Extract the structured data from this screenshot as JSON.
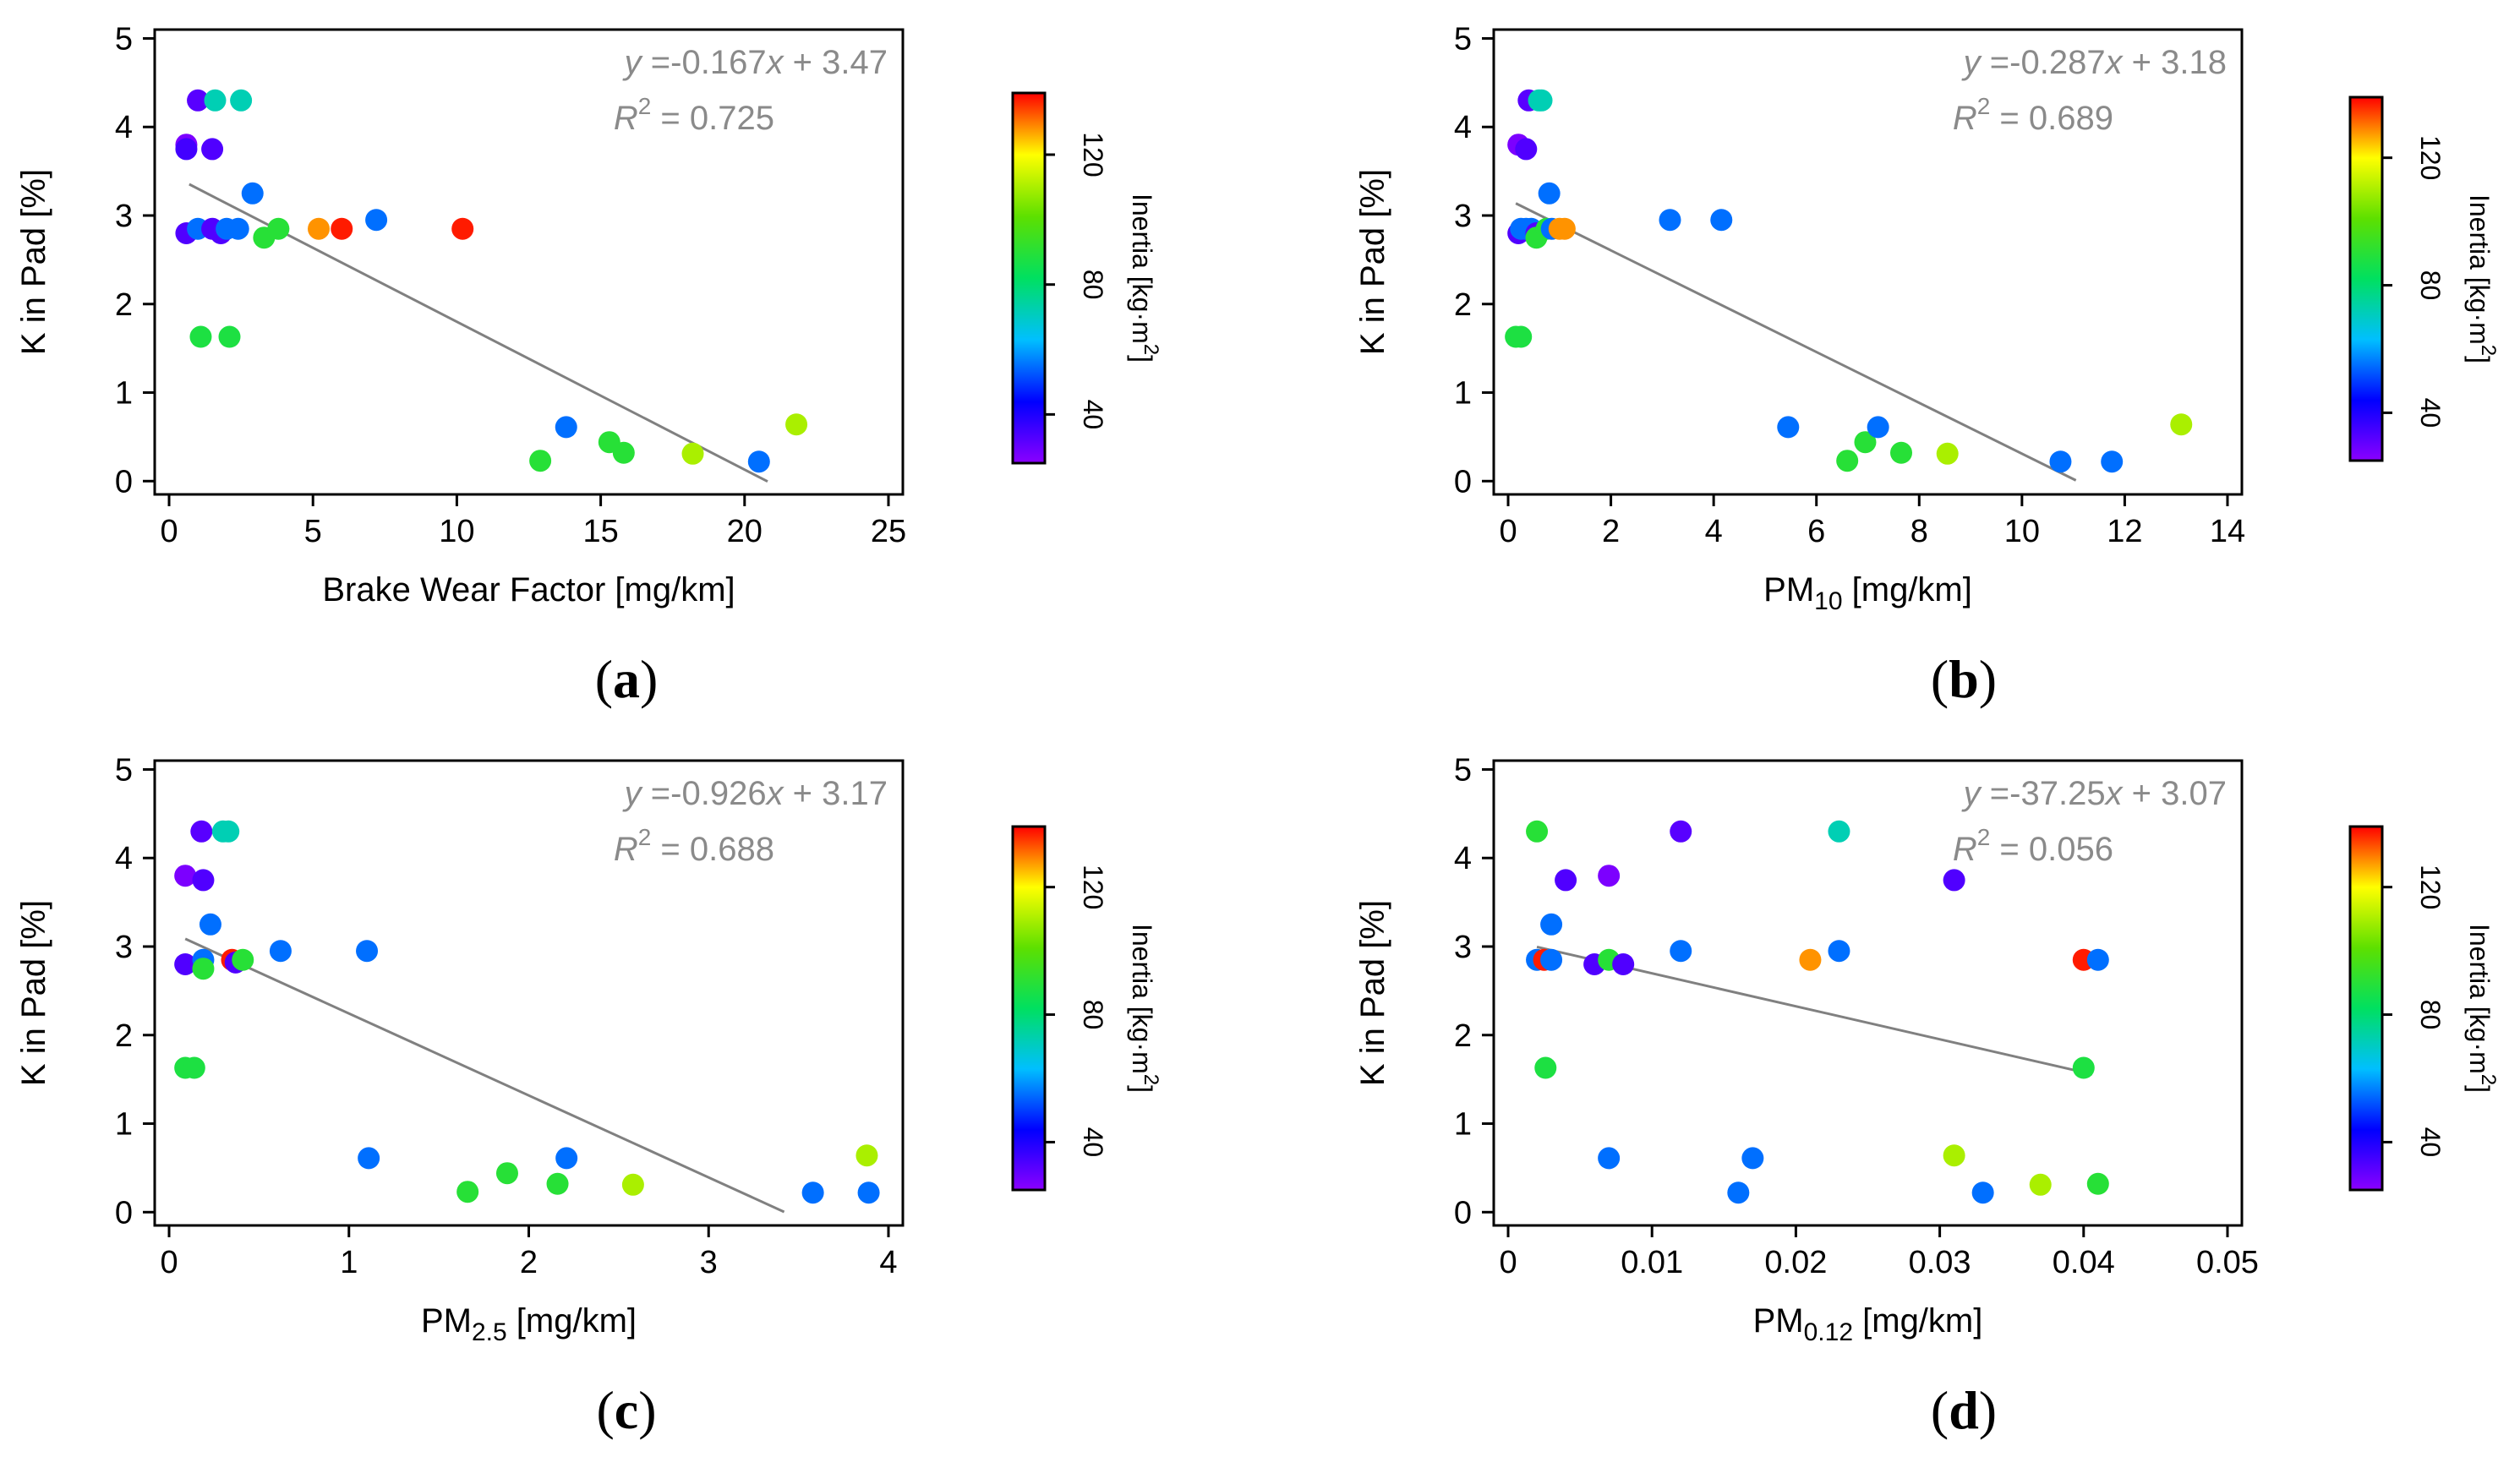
{
  "chart_data": [
    {
      "id": "a",
      "type": "scatter",
      "panel_label": "a",
      "xlabel": "Brake Wear Factor [mg/km]",
      "xlabel_main": "Brake Wear Factor [mg/km]",
      "xlabel_sub": "",
      "xlabel_after": "",
      "ylabel": "K in Pad [%]",
      "xlim": [
        0,
        25
      ],
      "ylim": [
        0,
        5
      ],
      "xticks": [
        0,
        5,
        10,
        15,
        20,
        25
      ],
      "xtick_labels": [
        "0",
        "5",
        "10",
        "15",
        "20",
        "25"
      ],
      "yticks": [
        0,
        1,
        2,
        3,
        4,
        5
      ],
      "ytick_labels": [
        "0",
        "1",
        "2",
        "3",
        "4",
        "5"
      ],
      "equation": {
        "y": "y",
        "eq_text": " =-0.167",
        "x": "x",
        "const_text": " + 3.47",
        "r": "R",
        "sup": "2",
        "r2_text": " = 0.725"
      },
      "fit": {
        "slope": -0.167,
        "intercept": 3.47,
        "x_start": 0.7,
        "x_end": 20.8
      },
      "colorbar": {
        "label": "Inertia [kg·m",
        "label_sup": "2",
        "label_close": "]",
        "min": 25,
        "max": 139,
        "ticks": [
          40,
          80,
          120
        ],
        "tick_labels": [
          "40",
          "80",
          "120"
        ]
      },
      "points": [
        {
          "x": 1.0,
          "y": 4.3,
          "inertia": 32
        },
        {
          "x": 1.6,
          "y": 4.3,
          "inertia": 72
        },
        {
          "x": 2.5,
          "y": 4.3,
          "inertia": 72
        },
        {
          "x": 0.6,
          "y": 3.8,
          "inertia": 27
        },
        {
          "x": 0.6,
          "y": 3.75,
          "inertia": 35
        },
        {
          "x": 1.5,
          "y": 3.75,
          "inertia": 33
        },
        {
          "x": 2.9,
          "y": 3.25,
          "inertia": 55
        },
        {
          "x": 0.6,
          "y": 2.8,
          "inertia": 33
        },
        {
          "x": 1.0,
          "y": 2.85,
          "inertia": 55
        },
        {
          "x": 1.5,
          "y": 2.85,
          "inertia": 33
        },
        {
          "x": 1.8,
          "y": 2.8,
          "inertia": 33
        },
        {
          "x": 2.0,
          "y": 2.85,
          "inertia": 55
        },
        {
          "x": 2.4,
          "y": 2.85,
          "inertia": 55
        },
        {
          "x": 3.3,
          "y": 2.75,
          "inertia": 90
        },
        {
          "x": 3.8,
          "y": 2.85,
          "inertia": 90
        },
        {
          "x": 5.2,
          "y": 2.85,
          "inertia": 128
        },
        {
          "x": 6.0,
          "y": 2.85,
          "inertia": 137
        },
        {
          "x": 7.2,
          "y": 2.95,
          "inertia": 55
        },
        {
          "x": 10.2,
          "y": 2.85,
          "inertia": 137
        },
        {
          "x": 1.1,
          "y": 1.63,
          "inertia": 88
        },
        {
          "x": 2.1,
          "y": 1.63,
          "inertia": 88
        },
        {
          "x": 12.9,
          "y": 0.23,
          "inertia": 90
        },
        {
          "x": 13.8,
          "y": 0.61,
          "inertia": 55
        },
        {
          "x": 15.3,
          "y": 0.44,
          "inertia": 90
        },
        {
          "x": 15.8,
          "y": 0.32,
          "inertia": 90
        },
        {
          "x": 18.2,
          "y": 0.31,
          "inertia": 110
        },
        {
          "x": 20.5,
          "y": 0.22,
          "inertia": 55
        },
        {
          "x": 21.8,
          "y": 0.64,
          "inertia": 110
        }
      ]
    },
    {
      "id": "b",
      "type": "scatter",
      "panel_label": "b",
      "xlabel": "PM10 [mg/km]",
      "xlabel_main": "PM",
      "xlabel_sub": "10",
      "xlabel_after": " [mg/km]",
      "ylabel": "K in Pad [%]",
      "xlim": [
        0,
        14
      ],
      "ylim": [
        0,
        5
      ],
      "xticks": [
        0,
        2,
        4,
        6,
        8,
        10,
        12,
        14
      ],
      "xtick_labels": [
        "0",
        "2",
        "4",
        "6",
        "8",
        "10",
        "12",
        "14"
      ],
      "yticks": [
        0,
        1,
        2,
        3,
        4,
        5
      ],
      "ytick_labels": [
        "0",
        "1",
        "2",
        "3",
        "4",
        "5"
      ],
      "equation": {
        "y": "y",
        "eq_text": " =-0.287",
        "x": "x",
        "const_text": " + 3.18",
        "r": "R",
        "sup": "2",
        "r2_text": " = 0.689"
      },
      "fit": {
        "slope": -0.287,
        "intercept": 3.18,
        "x_start": 0.15,
        "x_end": 11.05
      },
      "colorbar": {
        "label": "Inertia [kg·m",
        "label_sup": "2",
        "label_close": "]",
        "min": 25,
        "max": 139,
        "ticks": [
          40,
          80,
          120
        ],
        "tick_labels": [
          "40",
          "80",
          "120"
        ]
      },
      "points": [
        {
          "x": 0.4,
          "y": 4.3,
          "inertia": 32
        },
        {
          "x": 0.6,
          "y": 4.3,
          "inertia": 72
        },
        {
          "x": 0.65,
          "y": 4.3,
          "inertia": 72
        },
        {
          "x": 0.2,
          "y": 3.8,
          "inertia": 27
        },
        {
          "x": 0.35,
          "y": 3.75,
          "inertia": 33
        },
        {
          "x": 0.8,
          "y": 3.25,
          "inertia": 55
        },
        {
          "x": 0.2,
          "y": 2.8,
          "inertia": 33
        },
        {
          "x": 0.25,
          "y": 2.85,
          "inertia": 55
        },
        {
          "x": 0.35,
          "y": 2.85,
          "inertia": 55
        },
        {
          "x": 0.45,
          "y": 2.85,
          "inertia": 55
        },
        {
          "x": 0.55,
          "y": 2.8,
          "inertia": 33
        },
        {
          "x": 0.55,
          "y": 2.75,
          "inertia": 90
        },
        {
          "x": 0.75,
          "y": 2.85,
          "inertia": 90
        },
        {
          "x": 0.85,
          "y": 2.85,
          "inertia": 55
        },
        {
          "x": 1.0,
          "y": 2.85,
          "inertia": 128
        },
        {
          "x": 1.1,
          "y": 2.85,
          "inertia": 128
        },
        {
          "x": 3.15,
          "y": 2.95,
          "inertia": 55
        },
        {
          "x": 4.15,
          "y": 2.95,
          "inertia": 55
        },
        {
          "x": 0.15,
          "y": 1.63,
          "inertia": 88
        },
        {
          "x": 0.25,
          "y": 1.63,
          "inertia": 88
        },
        {
          "x": 5.45,
          "y": 0.61,
          "inertia": 55
        },
        {
          "x": 6.6,
          "y": 0.23,
          "inertia": 90
        },
        {
          "x": 6.95,
          "y": 0.44,
          "inertia": 90
        },
        {
          "x": 7.2,
          "y": 0.61,
          "inertia": 55
        },
        {
          "x": 7.65,
          "y": 0.32,
          "inertia": 90
        },
        {
          "x": 8.55,
          "y": 0.31,
          "inertia": 110
        },
        {
          "x": 10.75,
          "y": 0.22,
          "inertia": 55
        },
        {
          "x": 11.75,
          "y": 0.22,
          "inertia": 55
        },
        {
          "x": 13.1,
          "y": 0.64,
          "inertia": 110
        }
      ]
    },
    {
      "id": "c",
      "type": "scatter",
      "panel_label": "c",
      "xlabel": "PM2.5 [mg/km]",
      "xlabel_main": "PM",
      "xlabel_sub": "2.5",
      "xlabel_after": " [mg/km]",
      "ylabel": "K in Pad [%]",
      "xlim": [
        0,
        4
      ],
      "ylim": [
        0,
        5
      ],
      "xticks": [
        0,
        1,
        2,
        3,
        4
      ],
      "xtick_labels": [
        "0",
        "1",
        "2",
        "3",
        "4"
      ],
      "yticks": [
        0,
        1,
        2,
        3,
        4,
        5
      ],
      "ytick_labels": [
        "0",
        "1",
        "2",
        "3",
        "4",
        "5"
      ],
      "equation": {
        "y": "y",
        "eq_text": " =-0.926",
        "x": "x",
        "const_text": " + 3.17",
        "r": "R",
        "sup": "2",
        "r2_text": " = 0.688"
      },
      "fit": {
        "slope": -0.926,
        "intercept": 3.17,
        "x_start": 0.09,
        "x_end": 3.42
      },
      "colorbar": {
        "label": "Inertia [kg·m",
        "label_sup": "2",
        "label_close": "]",
        "min": 25,
        "max": 139,
        "ticks": [
          40,
          80,
          120
        ],
        "tick_labels": [
          "40",
          "80",
          "120"
        ]
      },
      "points": [
        {
          "x": 0.18,
          "y": 4.3,
          "inertia": 32
        },
        {
          "x": 0.3,
          "y": 4.3,
          "inertia": 72
        },
        {
          "x": 0.33,
          "y": 4.3,
          "inertia": 72
        },
        {
          "x": 0.09,
          "y": 3.8,
          "inertia": 27
        },
        {
          "x": 0.19,
          "y": 3.75,
          "inertia": 33
        },
        {
          "x": 0.23,
          "y": 3.25,
          "inertia": 55
        },
        {
          "x": 0.09,
          "y": 2.8,
          "inertia": 33
        },
        {
          "x": 0.19,
          "y": 2.85,
          "inertia": 55
        },
        {
          "x": 0.19,
          "y": 2.75,
          "inertia": 90
        },
        {
          "x": 0.35,
          "y": 2.85,
          "inertia": 137
        },
        {
          "x": 0.37,
          "y": 2.82,
          "inertia": 33
        },
        {
          "x": 0.41,
          "y": 2.85,
          "inertia": 90
        },
        {
          "x": 0.62,
          "y": 2.95,
          "inertia": 55
        },
        {
          "x": 1.1,
          "y": 2.95,
          "inertia": 55
        },
        {
          "x": 0.09,
          "y": 1.63,
          "inertia": 88
        },
        {
          "x": 0.14,
          "y": 1.63,
          "inertia": 88
        },
        {
          "x": 1.11,
          "y": 0.61,
          "inertia": 55
        },
        {
          "x": 1.66,
          "y": 0.23,
          "inertia": 90
        },
        {
          "x": 1.88,
          "y": 0.44,
          "inertia": 90
        },
        {
          "x": 2.16,
          "y": 0.32,
          "inertia": 90
        },
        {
          "x": 2.21,
          "y": 0.61,
          "inertia": 55
        },
        {
          "x": 2.58,
          "y": 0.31,
          "inertia": 110
        },
        {
          "x": 3.58,
          "y": 0.22,
          "inertia": 55
        },
        {
          "x": 3.88,
          "y": 0.64,
          "inertia": 110
        },
        {
          "x": 3.89,
          "y": 0.22,
          "inertia": 55
        }
      ]
    },
    {
      "id": "d",
      "type": "scatter",
      "panel_label": "d",
      "xlabel": "PM0.12 [mg/km]",
      "xlabel_main": "PM",
      "xlabel_sub": "0.12",
      "xlabel_after": " [mg/km]",
      "ylabel": "K in Pad [%]",
      "xlim": [
        0,
        0.05
      ],
      "ylim": [
        0,
        5
      ],
      "xticks": [
        0,
        0.01,
        0.02,
        0.03,
        0.04,
        0.05
      ],
      "xtick_labels": [
        "0",
        "0.01",
        "0.02",
        "0.03",
        "0.04",
        "0.05"
      ],
      "yticks": [
        0,
        1,
        2,
        3,
        4,
        5
      ],
      "ytick_labels": [
        "0",
        "1",
        "2",
        "3",
        "4",
        "5"
      ],
      "equation": {
        "y": "y",
        "eq_text": " =-37.25",
        "x": "x",
        "const_text": " + 3.07",
        "r": "R",
        "sup": "2",
        "r2_text": " = 0.056"
      },
      "fit": {
        "slope": -37.25,
        "intercept": 3.07,
        "x_start": 0.002,
        "x_end": 0.0406
      },
      "colorbar": {
        "label": "Inertia [kg·m",
        "label_sup": "2",
        "label_close": "]",
        "min": 25,
        "max": 139,
        "ticks": [
          40,
          80,
          120
        ],
        "tick_labels": [
          "40",
          "80",
          "120"
        ]
      },
      "points": [
        {
          "x": 0.002,
          "y": 4.3,
          "inertia": 90
        },
        {
          "x": 0.012,
          "y": 4.3,
          "inertia": 32
        },
        {
          "x": 0.023,
          "y": 4.3,
          "inertia": 72
        },
        {
          "x": 0.004,
          "y": 3.75,
          "inertia": 33
        },
        {
          "x": 0.007,
          "y": 3.8,
          "inertia": 27
        },
        {
          "x": 0.031,
          "y": 3.75,
          "inertia": 33
        },
        {
          "x": 0.003,
          "y": 3.25,
          "inertia": 55
        },
        {
          "x": 0.002,
          "y": 2.85,
          "inertia": 55
        },
        {
          "x": 0.0025,
          "y": 2.85,
          "inertia": 137
        },
        {
          "x": 0.003,
          "y": 2.85,
          "inertia": 55
        },
        {
          "x": 0.006,
          "y": 2.8,
          "inertia": 33
        },
        {
          "x": 0.007,
          "y": 2.85,
          "inertia": 90
        },
        {
          "x": 0.008,
          "y": 2.8,
          "inertia": 33
        },
        {
          "x": 0.012,
          "y": 2.95,
          "inertia": 55
        },
        {
          "x": 0.021,
          "y": 2.85,
          "inertia": 128
        },
        {
          "x": 0.023,
          "y": 2.95,
          "inertia": 55
        },
        {
          "x": 0.04,
          "y": 2.85,
          "inertia": 137
        },
        {
          "x": 0.041,
          "y": 2.85,
          "inertia": 55
        },
        {
          "x": 0.0026,
          "y": 1.63,
          "inertia": 88
        },
        {
          "x": 0.04,
          "y": 1.63,
          "inertia": 88
        },
        {
          "x": 0.007,
          "y": 0.61,
          "inertia": 55
        },
        {
          "x": 0.016,
          "y": 0.22,
          "inertia": 55
        },
        {
          "x": 0.017,
          "y": 0.61,
          "inertia": 55
        },
        {
          "x": 0.031,
          "y": 0.64,
          "inertia": 110
        },
        {
          "x": 0.033,
          "y": 0.22,
          "inertia": 55
        },
        {
          "x": 0.037,
          "y": 0.31,
          "inertia": 110
        },
        {
          "x": 0.041,
          "y": 0.32,
          "inertia": 90
        }
      ]
    }
  ]
}
